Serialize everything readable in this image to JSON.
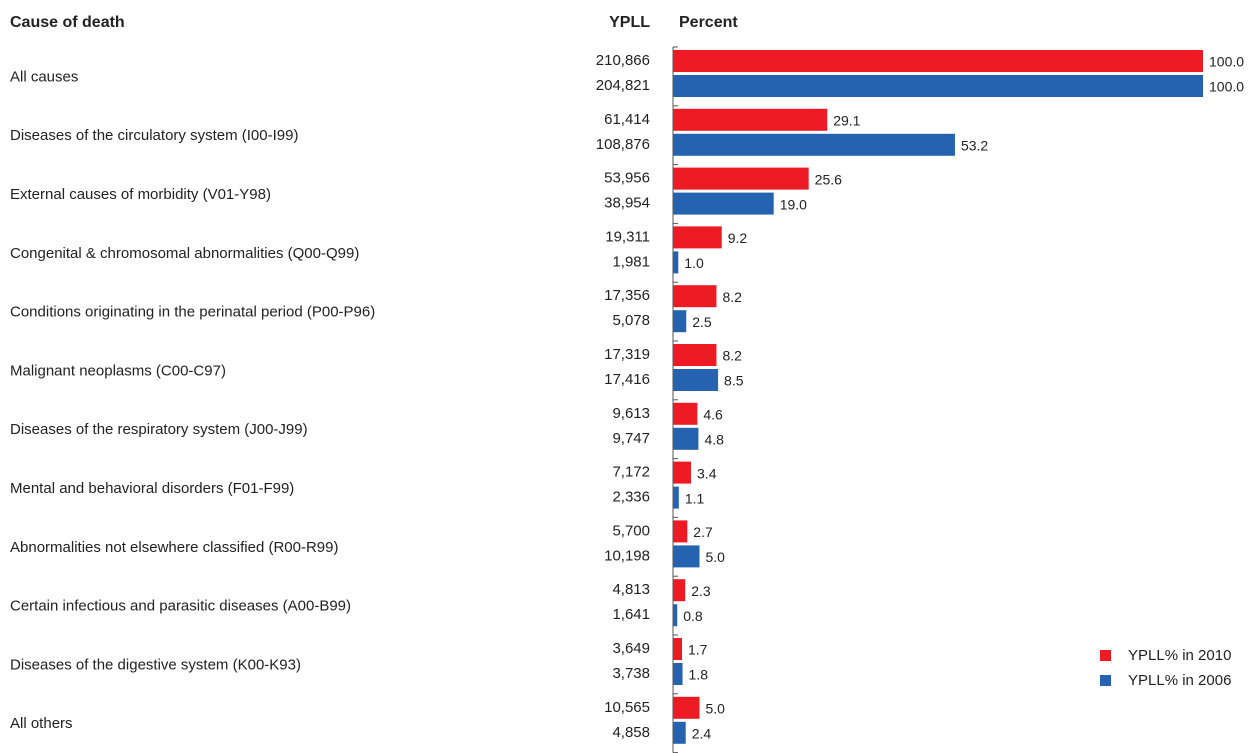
{
  "chart_data": {
    "type": "bar",
    "orientation": "horizontal",
    "headers": [
      "Cause of death",
      "YPLL",
      "Percent"
    ],
    "categories": [
      "All causes",
      "Diseases of the circulatory system (I00-I99)",
      "External causes of morbidity (V01-Y98)",
      "Congenital & chromosomal abnormalities (Q00-Q99)",
      "Conditions originating in the perinatal period (P00-P96)",
      "Malignant neoplasms (C00-C97)",
      "Diseases of the respiratory system (J00-J99)",
      "Mental and behavioral disorders (F01-F99)",
      "Abnormalities not elsewhere classified (R00-R99)",
      "Certain infectious and parasitic diseases (A00-B99)",
      "Diseases of the digestive system (K00-K93)",
      "All others"
    ],
    "series": [
      {
        "name": "YPLL% in 2010",
        "color": "#ed1c24",
        "ypll": [
          "210,866",
          "61,414",
          "53,956",
          "19,311",
          "17,356",
          "17,319",
          "9,613",
          "7,172",
          "5,700",
          "4,813",
          "3,649",
          "10,565"
        ],
        "values": [
          100,
          29.1,
          25.6,
          9.2,
          8.2,
          8.2,
          4.6,
          3.4,
          2.7,
          2.3,
          1.7,
          5
        ],
        "value_labels": [
          "100.0",
          "29.1",
          "25.6",
          "9.2",
          "8.2",
          "8.2",
          "4.6",
          "3.4",
          "2.7",
          "2.3",
          "1.7",
          "5.0"
        ]
      },
      {
        "name": "YPLL% in 2006",
        "color": "#2563b0",
        "ypll": [
          "204,821",
          "108,876",
          "38,954",
          "1,981",
          "5,078",
          "17,416",
          "9,747",
          "2,336",
          "10,198",
          "1,641",
          "3,738",
          "4,858"
        ],
        "values": [
          100,
          53.2,
          19,
          1,
          2.5,
          8.5,
          4.8,
          1.1,
          5,
          0.8,
          1.8,
          2.4
        ],
        "value_labels": [
          "100.0",
          "53.2",
          "19.0",
          "1.0",
          "2.5",
          "8.5",
          "4.8",
          "1.1",
          "5.0",
          "0.8",
          "1.8",
          "2.4"
        ]
      }
    ],
    "xlim": [
      0,
      100
    ]
  }
}
